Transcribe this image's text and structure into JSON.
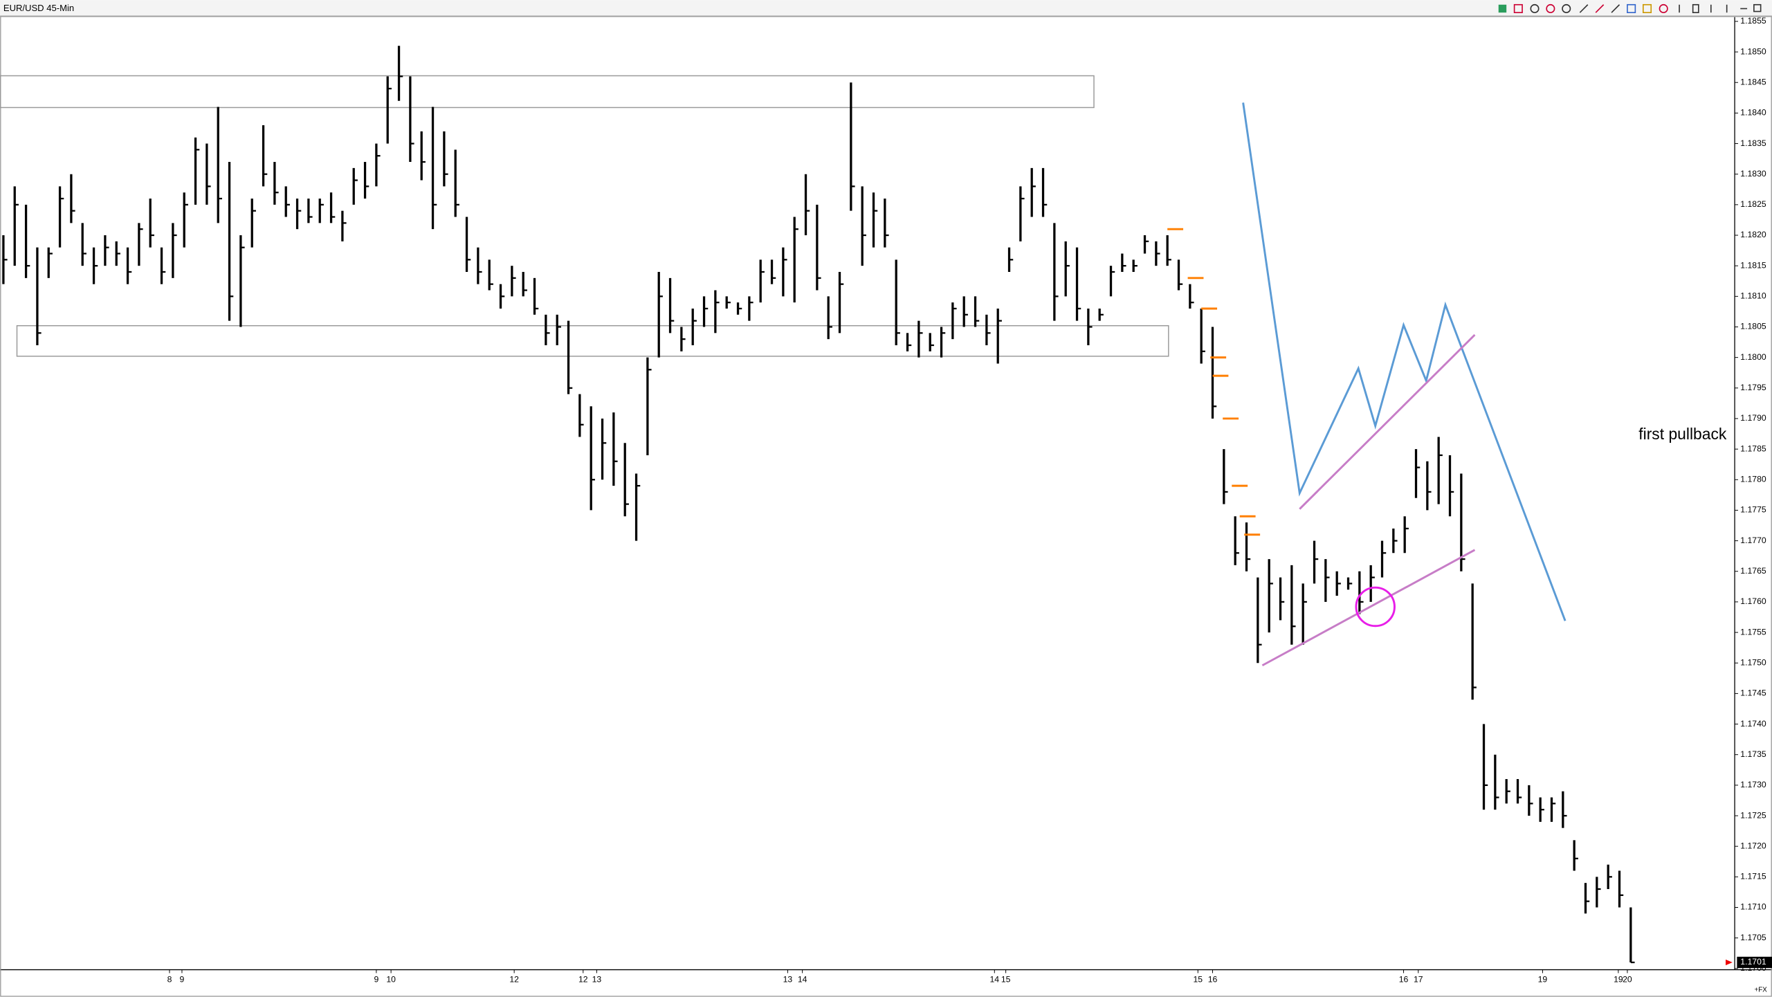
{
  "chart_data": {
    "type": "hlc",
    "title": "EUR/USD 45-Min",
    "color": "#000000",
    "high": [
      1.182,
      1.1828,
      1.1825,
      1.1818,
      1.1818,
      1.1828,
      1.183,
      1.1822,
      1.1818,
      1.182,
      1.1819,
      1.1818,
      1.1822,
      1.1826,
      1.1818,
      1.1822,
      1.1827,
      1.1836,
      1.1835,
      1.1841,
      1.1832,
      1.182,
      1.1826,
      1.1838,
      1.1832,
      1.1828,
      1.1826,
      1.1826,
      1.1826,
      1.1827,
      1.1824,
      1.1831,
      1.1832,
      1.1835,
      1.1846,
      1.1851,
      1.1846,
      1.1837,
      1.1841,
      1.1837,
      1.1834,
      1.1823,
      1.1818,
      1.1816,
      1.1812,
      1.1815,
      1.1814,
      1.1813,
      1.1807,
      1.1807,
      1.1806,
      1.1794,
      1.1792,
      1.179,
      1.1791,
      1.1786,
      1.1781,
      1.18,
      1.1814,
      1.1813,
      1.1805,
      1.1808,
      1.181,
      1.1811,
      1.181,
      1.1809,
      1.181,
      1.1816,
      1.1816,
      1.1818,
      1.1823,
      1.183,
      1.1825,
      1.181,
      1.1814,
      1.1845,
      1.1828,
      1.1827,
      1.1826,
      1.1816,
      1.1804,
      1.1806,
      1.1804,
      1.1805,
      1.1809,
      1.181,
      1.181,
      1.1807,
      1.1808,
      1.1818,
      1.1828,
      1.1831,
      1.1831,
      1.1822,
      1.1819,
      1.1818,
      1.1808,
      1.1808,
      1.1815,
      1.1817,
      1.1816,
      1.182,
      1.1819,
      1.182,
      1.1816,
      1.1812,
      1.1808,
      1.1805,
      1.1785,
      1.1774,
      1.1773,
      1.1764,
      1.1767,
      1.1764,
      1.1766,
      1.1763,
      1.177,
      1.1767,
      1.1765,
      1.1764,
      1.1765,
      1.1766,
      1.177,
      1.1772,
      1.1774,
      1.1785,
      1.1783,
      1.1787,
      1.1784,
      1.1781,
      1.1763,
      1.174,
      1.1735,
      1.1731,
      1.1731,
      1.173,
      1.1728,
      1.1728,
      1.1729,
      1.1721,
      1.1714,
      1.1715,
      1.1717,
      1.1716,
      1.171
    ],
    "low": [
      1.1812,
      1.1815,
      1.1813,
      1.1802,
      1.1813,
      1.1818,
      1.1822,
      1.1815,
      1.1812,
      1.1815,
      1.1815,
      1.1812,
      1.1815,
      1.1818,
      1.1812,
      1.1813,
      1.1818,
      1.1825,
      1.1825,
      1.1822,
      1.1806,
      1.1805,
      1.1818,
      1.1828,
      1.1825,
      1.1823,
      1.1821,
      1.1822,
      1.1822,
      1.1822,
      1.1819,
      1.1825,
      1.1826,
      1.1828,
      1.1835,
      1.1842,
      1.1832,
      1.1829,
      1.1821,
      1.1828,
      1.1823,
      1.1814,
      1.1812,
      1.1811,
      1.1808,
      1.181,
      1.181,
      1.1807,
      1.1802,
      1.1802,
      1.1794,
      1.1787,
      1.1775,
      1.178,
      1.1779,
      1.1774,
      1.177,
      1.1784,
      1.18,
      1.1804,
      1.1801,
      1.1802,
      1.1805,
      1.1804,
      1.1808,
      1.1807,
      1.1806,
      1.1809,
      1.1812,
      1.181,
      1.1809,
      1.182,
      1.1811,
      1.1803,
      1.1804,
      1.1824,
      1.1815,
      1.1818,
      1.1818,
      1.1802,
      1.1801,
      1.18,
      1.1801,
      1.18,
      1.1803,
      1.1805,
      1.1805,
      1.1802,
      1.1799,
      1.1814,
      1.1819,
      1.1823,
      1.1823,
      1.1806,
      1.181,
      1.1806,
      1.1802,
      1.1806,
      1.181,
      1.1814,
      1.1814,
      1.1817,
      1.1815,
      1.1815,
      1.1811,
      1.1808,
      1.1799,
      1.179,
      1.1776,
      1.1766,
      1.1765,
      1.175,
      1.1755,
      1.1757,
      1.1753,
      1.1753,
      1.1763,
      1.176,
      1.1761,
      1.1762,
      1.1758,
      1.176,
      1.1764,
      1.1768,
      1.1768,
      1.1777,
      1.1775,
      1.1776,
      1.1774,
      1.1765,
      1.1744,
      1.1726,
      1.1726,
      1.1727,
      1.1727,
      1.1725,
      1.1724,
      1.1724,
      1.1723,
      1.1716,
      1.1709,
      1.171,
      1.1713,
      1.171,
      1.1701
    ],
    "close": [
      1.1816,
      1.1825,
      1.1815,
      1.1804,
      1.1817,
      1.1826,
      1.1824,
      1.1817,
      1.1815,
      1.1818,
      1.1817,
      1.1814,
      1.1821,
      1.182,
      1.1814,
      1.182,
      1.1825,
      1.1834,
      1.1828,
      1.1826,
      1.181,
      1.1818,
      1.1824,
      1.183,
      1.1827,
      1.1825,
      1.1824,
      1.1823,
      1.1825,
      1.1823,
      1.1822,
      1.1829,
      1.1828,
      1.1833,
      1.1844,
      1.1846,
      1.1835,
      1.1832,
      1.1825,
      1.183,
      1.1825,
      1.1816,
      1.1814,
      1.1812,
      1.181,
      1.1813,
      1.1811,
      1.1808,
      1.1804,
      1.1805,
      1.1795,
      1.1789,
      1.178,
      1.1786,
      1.1783,
      1.1776,
      1.1779,
      1.1798,
      1.181,
      1.1806,
      1.1803,
      1.1806,
      1.1808,
      1.1809,
      1.1809,
      1.1808,
      1.1809,
      1.1814,
      1.1813,
      1.1816,
      1.1821,
      1.1824,
      1.1813,
      1.1805,
      1.1812,
      1.1828,
      1.182,
      1.1824,
      1.182,
      1.1804,
      1.1802,
      1.1804,
      1.1802,
      1.1804,
      1.1808,
      1.1807,
      1.1806,
      1.1804,
      1.1806,
      1.1816,
      1.1826,
      1.1828,
      1.1825,
      1.181,
      1.1815,
      1.1808,
      1.1805,
      1.1807,
      1.1814,
      1.1815,
      1.1815,
      1.1819,
      1.1817,
      1.1816,
      1.1812,
      1.1809,
      1.1801,
      1.1792,
      1.1778,
      1.1768,
      1.1767,
      1.1753,
      1.1763,
      1.176,
      1.1756,
      1.176,
      1.1767,
      1.1764,
      1.1763,
      1.1763,
      1.176,
      1.1764,
      1.1768,
      1.177,
      1.1772,
      1.1782,
      1.1778,
      1.1784,
      1.1778,
      1.1767,
      1.1746,
      1.173,
      1.1728,
      1.1729,
      1.1728,
      1.1727,
      1.1726,
      1.1727,
      1.1725,
      1.1718,
      1.1711,
      1.1713,
      1.1715,
      1.1712,
      1.1701
    ],
    "xlim": [
      -0.3,
      153.2
    ],
    "xticks": [
      {
        "value": 14.7,
        "label": "8"
      },
      {
        "value": 15.8,
        "label": "9"
      },
      {
        "value": 33,
        "label": "9"
      },
      {
        "value": 34.3,
        "label": "10"
      },
      {
        "value": 45.2,
        "label": "12"
      },
      {
        "value": 51.3,
        "label": "12"
      },
      {
        "value": 52.5,
        "label": "13"
      },
      {
        "value": 69.4,
        "label": "13"
      },
      {
        "value": 70.7,
        "label": "14"
      },
      {
        "value": 87.7,
        "label": "14"
      },
      {
        "value": 88.7,
        "label": "15"
      },
      {
        "value": 105.7,
        "label": "15"
      },
      {
        "value": 107,
        "label": "16"
      },
      {
        "value": 123.9,
        "label": "16"
      },
      {
        "value": 125.2,
        "label": "17"
      },
      {
        "value": 136.2,
        "label": "19"
      },
      {
        "value": 142.9,
        "label": "19"
      },
      {
        "value": 143.7,
        "label": "20"
      }
    ],
    "ylim": [
      1.16998,
      1.18557
    ],
    "yticks": [
      {
        "value": 1.17,
        "label": "1.1700"
      },
      1.1705,
      {
        "value": 1.171,
        "label": "1.1710"
      },
      1.1715,
      {
        "value": 1.172,
        "label": "1.1720"
      },
      1.1725,
      {
        "value": 1.173,
        "label": "1.1730"
      },
      1.1735,
      {
        "value": 1.174,
        "label": "1.1740"
      },
      1.1745,
      {
        "value": 1.175,
        "label": "1.1750"
      },
      1.1755,
      {
        "value": 1.176,
        "label": "1.1760"
      },
      1.1765,
      {
        "value": 1.177,
        "label": "1.1770"
      },
      1.1775,
      {
        "value": 1.178,
        "label": "1.1780"
      },
      1.1785,
      {
        "value": 1.179,
        "label": "1.1790"
      },
      1.1795,
      {
        "value": 1.18,
        "label": "1.1800"
      },
      1.1805,
      {
        "value": 1.181,
        "label": "1.1810"
      },
      1.1815,
      {
        "value": 1.182,
        "label": "1.1820"
      },
      1.1825,
      {
        "value": 1.183,
        "label": "1.1830"
      },
      1.1835,
      {
        "value": 1.184,
        "label": "1.1840"
      },
      1.1845,
      {
        "value": 1.185,
        "label": "1.1850"
      },
      1.1855
    ],
    "last_price": 1.1701,
    "zones": [
      {
        "x": [
          -0.3,
          96.5
        ],
        "y": [
          1.18409,
          1.18461
        ]
      },
      {
        "x": [
          1.2,
          103.1
        ],
        "y": [
          1.18002,
          1.18052
        ]
      }
    ],
    "markers": {
      "color": "#ff7f00",
      "x": [
        103.7,
        105.5,
        106.7,
        107.5,
        107.7,
        108.6,
        109.4,
        110.1,
        110.5
      ],
      "values": [
        1.1821,
        1.1813,
        1.1808,
        1.18,
        1.1797,
        1.179,
        1.1779,
        1.1774,
        1.1771
      ]
    },
    "drawings": [
      {
        "color": "#5b9bd5",
        "x": [
          109.7,
          114.7,
          119.9,
          121.4,
          123.9,
          125.9,
          127.6,
          138.2
        ],
        "values": [
          1.18417,
          1.17778,
          1.17982,
          1.17888,
          1.18053,
          1.17962,
          1.18086,
          1.17569
        ]
      },
      {
        "color": "#c77dc7",
        "x": [
          114.7,
          130.2
        ],
        "values": [
          1.17752,
          1.18037
        ]
      },
      {
        "color": "#c77dc7",
        "x": [
          111.4,
          130.2
        ],
        "values": [
          1.17496,
          1.17685
        ]
      }
    ],
    "circle": {
      "color": "#e81ee8",
      "x": 121.4,
      "value": 1.17592
    },
    "annotation": "first pullback",
    "footer_label": "+FX"
  }
}
